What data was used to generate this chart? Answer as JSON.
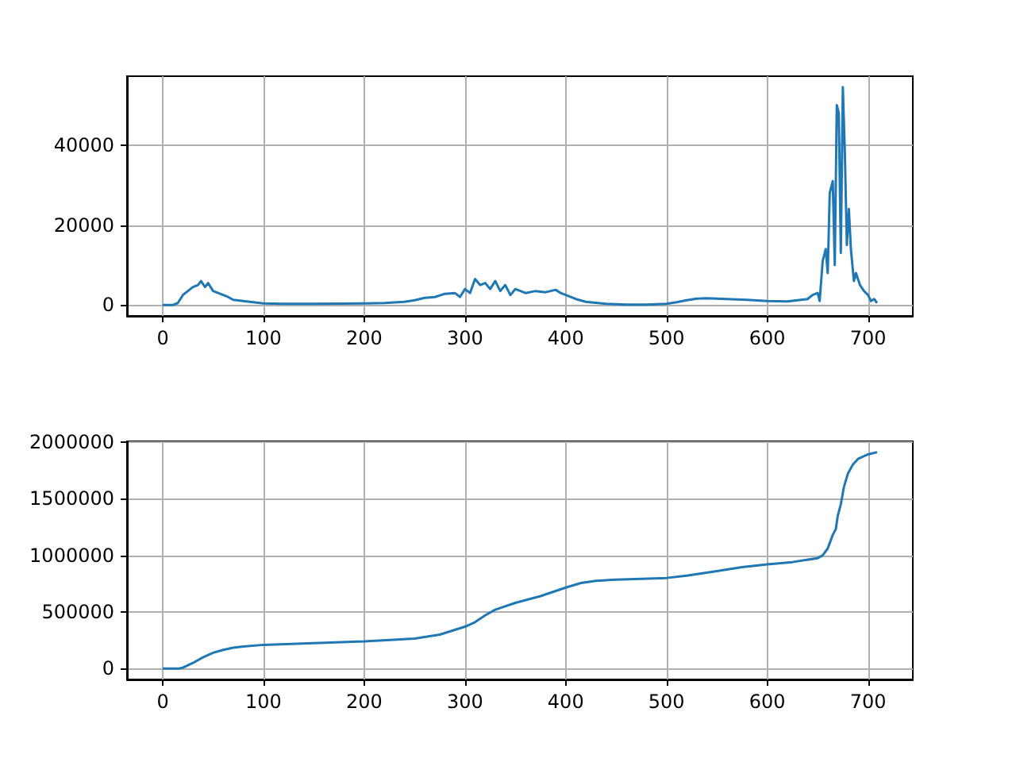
{
  "chart_data": [
    {
      "type": "line",
      "x": [
        0,
        10,
        15,
        20,
        25,
        30,
        35,
        38,
        42,
        45,
        50,
        55,
        60,
        65,
        70,
        80,
        90,
        100,
        120,
        150,
        200,
        220,
        240,
        250,
        260,
        270,
        280,
        290,
        295,
        300,
        305,
        310,
        315,
        320,
        325,
        330,
        335,
        340,
        345,
        350,
        360,
        370,
        380,
        390,
        395,
        400,
        410,
        420,
        440,
        460,
        480,
        500,
        510,
        520,
        530,
        540,
        560,
        580,
        600,
        620,
        630,
        640,
        645,
        650,
        652,
        655,
        658,
        660,
        662,
        665,
        667,
        669,
        671,
        673,
        675,
        677,
        679,
        681,
        683,
        686,
        688,
        692,
        696,
        700,
        703,
        706,
        709
      ],
      "series": [
        {
          "color": "#1f77b4",
          "values": [
            0,
            0,
            500,
            2500,
            3500,
            4500,
            5000,
            6000,
            4500,
            5500,
            3500,
            3000,
            2500,
            2000,
            1300,
            1000,
            700,
            400,
            300,
            300,
            400,
            500,
            800,
            1200,
            1800,
            2000,
            2800,
            3000,
            2000,
            4000,
            3000,
            6500,
            5000,
            5500,
            4000,
            6000,
            3500,
            5000,
            2500,
            4000,
            3000,
            3500,
            3200,
            3800,
            3000,
            2500,
            1500,
            800,
            300,
            100,
            100,
            300,
            700,
            1200,
            1600,
            1700,
            1500,
            1300,
            1000,
            900,
            1200,
            1500,
            2500,
            3000,
            1000,
            11000,
            14000,
            8000,
            28000,
            31000,
            10000,
            50000,
            48000,
            13000,
            54500,
            38000,
            15000,
            24000,
            14000,
            6000,
            8000,
            5000,
            3500,
            2500,
            1000,
            1500,
            500
          ]
        }
      ],
      "xlim": [
        -35.45,
        744.45
      ],
      "xticks": [
        0,
        100,
        200,
        300,
        400,
        500,
        600,
        700
      ],
      "ylim": [
        -2725,
        57225
      ],
      "yticks": [
        0,
        20000,
        40000
      ],
      "grid": true
    },
    {
      "type": "line",
      "x": [
        0,
        15,
        20,
        30,
        40,
        50,
        60,
        70,
        80,
        100,
        150,
        200,
        250,
        275,
        300,
        310,
        320,
        330,
        350,
        375,
        400,
        415,
        430,
        450,
        500,
        520,
        550,
        575,
        600,
        625,
        650,
        655,
        660,
        665,
        668,
        670,
        673,
        676,
        680,
        685,
        690,
        700,
        709
      ],
      "series": [
        {
          "color": "#1f77b4",
          "values": [
            0,
            0,
            8000,
            50000,
            100000,
            140000,
            165000,
            185000,
            195000,
            210000,
            225000,
            240000,
            265000,
            300000,
            370000,
            410000,
            470000,
            520000,
            580000,
            640000,
            715000,
            755000,
            775000,
            785000,
            800000,
            820000,
            860000,
            895000,
            920000,
            940000,
            975000,
            1000000,
            1060000,
            1180000,
            1230000,
            1350000,
            1450000,
            1600000,
            1720000,
            1800000,
            1850000,
            1890000,
            1910000
          ]
        }
      ],
      "xlim": [
        -35.45,
        744.45
      ],
      "xticks": [
        0,
        100,
        200,
        300,
        400,
        500,
        600,
        700
      ],
      "ylim": [
        -95500,
        2005500
      ],
      "yticks": [
        0,
        500000,
        1000000,
        1500000,
        2000000
      ],
      "grid": true
    }
  ]
}
